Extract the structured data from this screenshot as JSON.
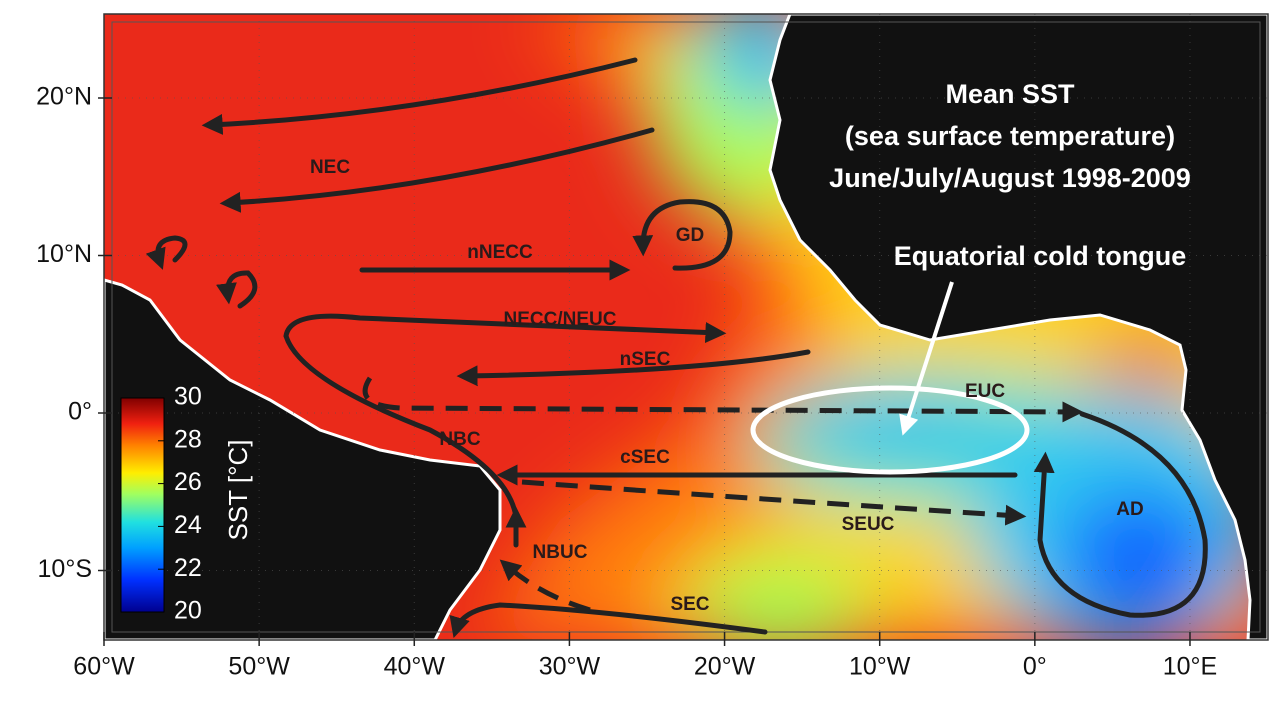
{
  "map": {
    "title": [
      "Mean SST",
      "(sea surface temperature)",
      "June/July/August 1998-2009"
    ],
    "annotation": "Equatorial cold tongue",
    "xticks": [
      {
        "value": -60,
        "label": "60°W"
      },
      {
        "value": -50,
        "label": "50°W"
      },
      {
        "value": -40,
        "label": "40°W"
      },
      {
        "value": -30,
        "label": "30°W"
      },
      {
        "value": -20,
        "label": "20°W"
      },
      {
        "value": -10,
        "label": "10°W"
      },
      {
        "value": 0,
        "label": "0°"
      },
      {
        "value": 10,
        "label": "10°E"
      }
    ],
    "yticks": [
      {
        "value": 20,
        "label": "20°N"
      },
      {
        "value": 10,
        "label": "10°N"
      },
      {
        "value": 0,
        "label": "0°"
      },
      {
        "value": -10,
        "label": "10°S"
      }
    ],
    "colorbar": {
      "label": "SST [°C]",
      "lim": [
        20,
        30
      ],
      "ticks": [
        20,
        22,
        24,
        26,
        28,
        30
      ]
    },
    "currents": [
      "NEC",
      "nNECC",
      "GD",
      "NECC/NEUC",
      "nSEC",
      "EUC",
      "NBC",
      "cSEC",
      "SEUC",
      "AD",
      "NBUC",
      "SEC"
    ]
  }
}
